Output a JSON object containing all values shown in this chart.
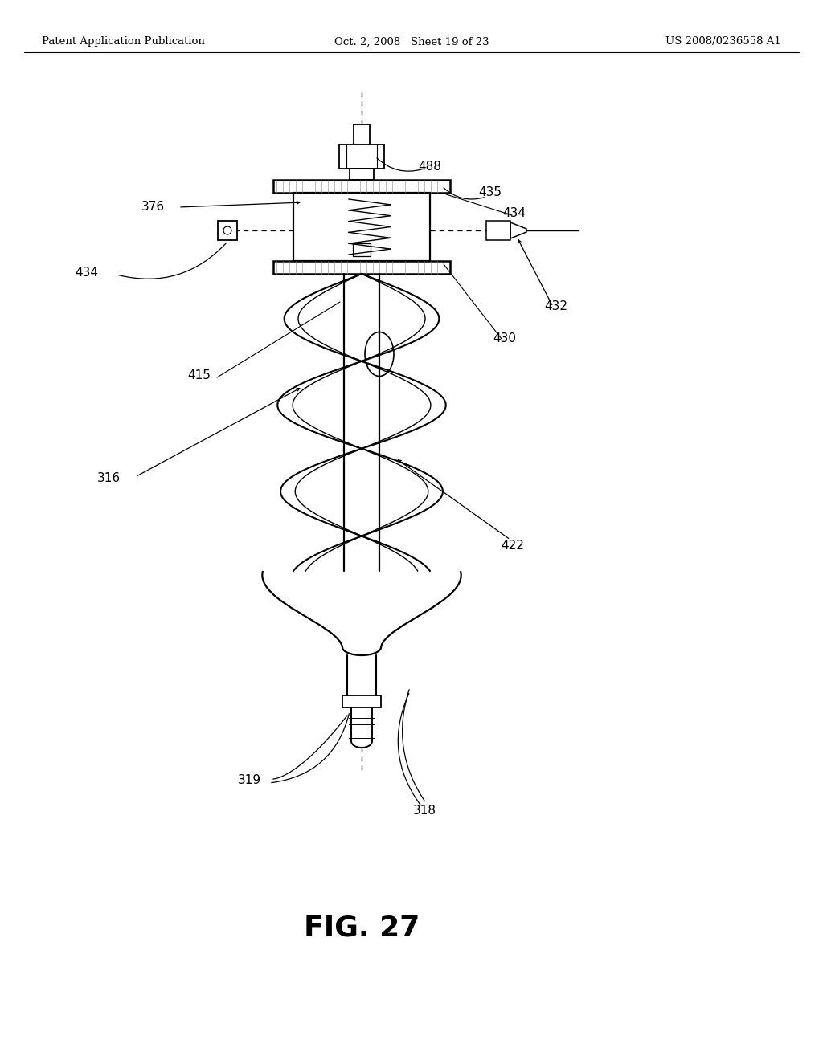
{
  "bg_color": "#ffffff",
  "header_left": "Patent Application Publication",
  "header_center": "Oct. 2, 2008   Sheet 19 of 23",
  "header_right": "US 2008/0236558 A1",
  "fig_caption": "FIG. 27",
  "label_fontsize": 11,
  "caption_fontsize": 26,
  "header_fontsize": 9.5
}
